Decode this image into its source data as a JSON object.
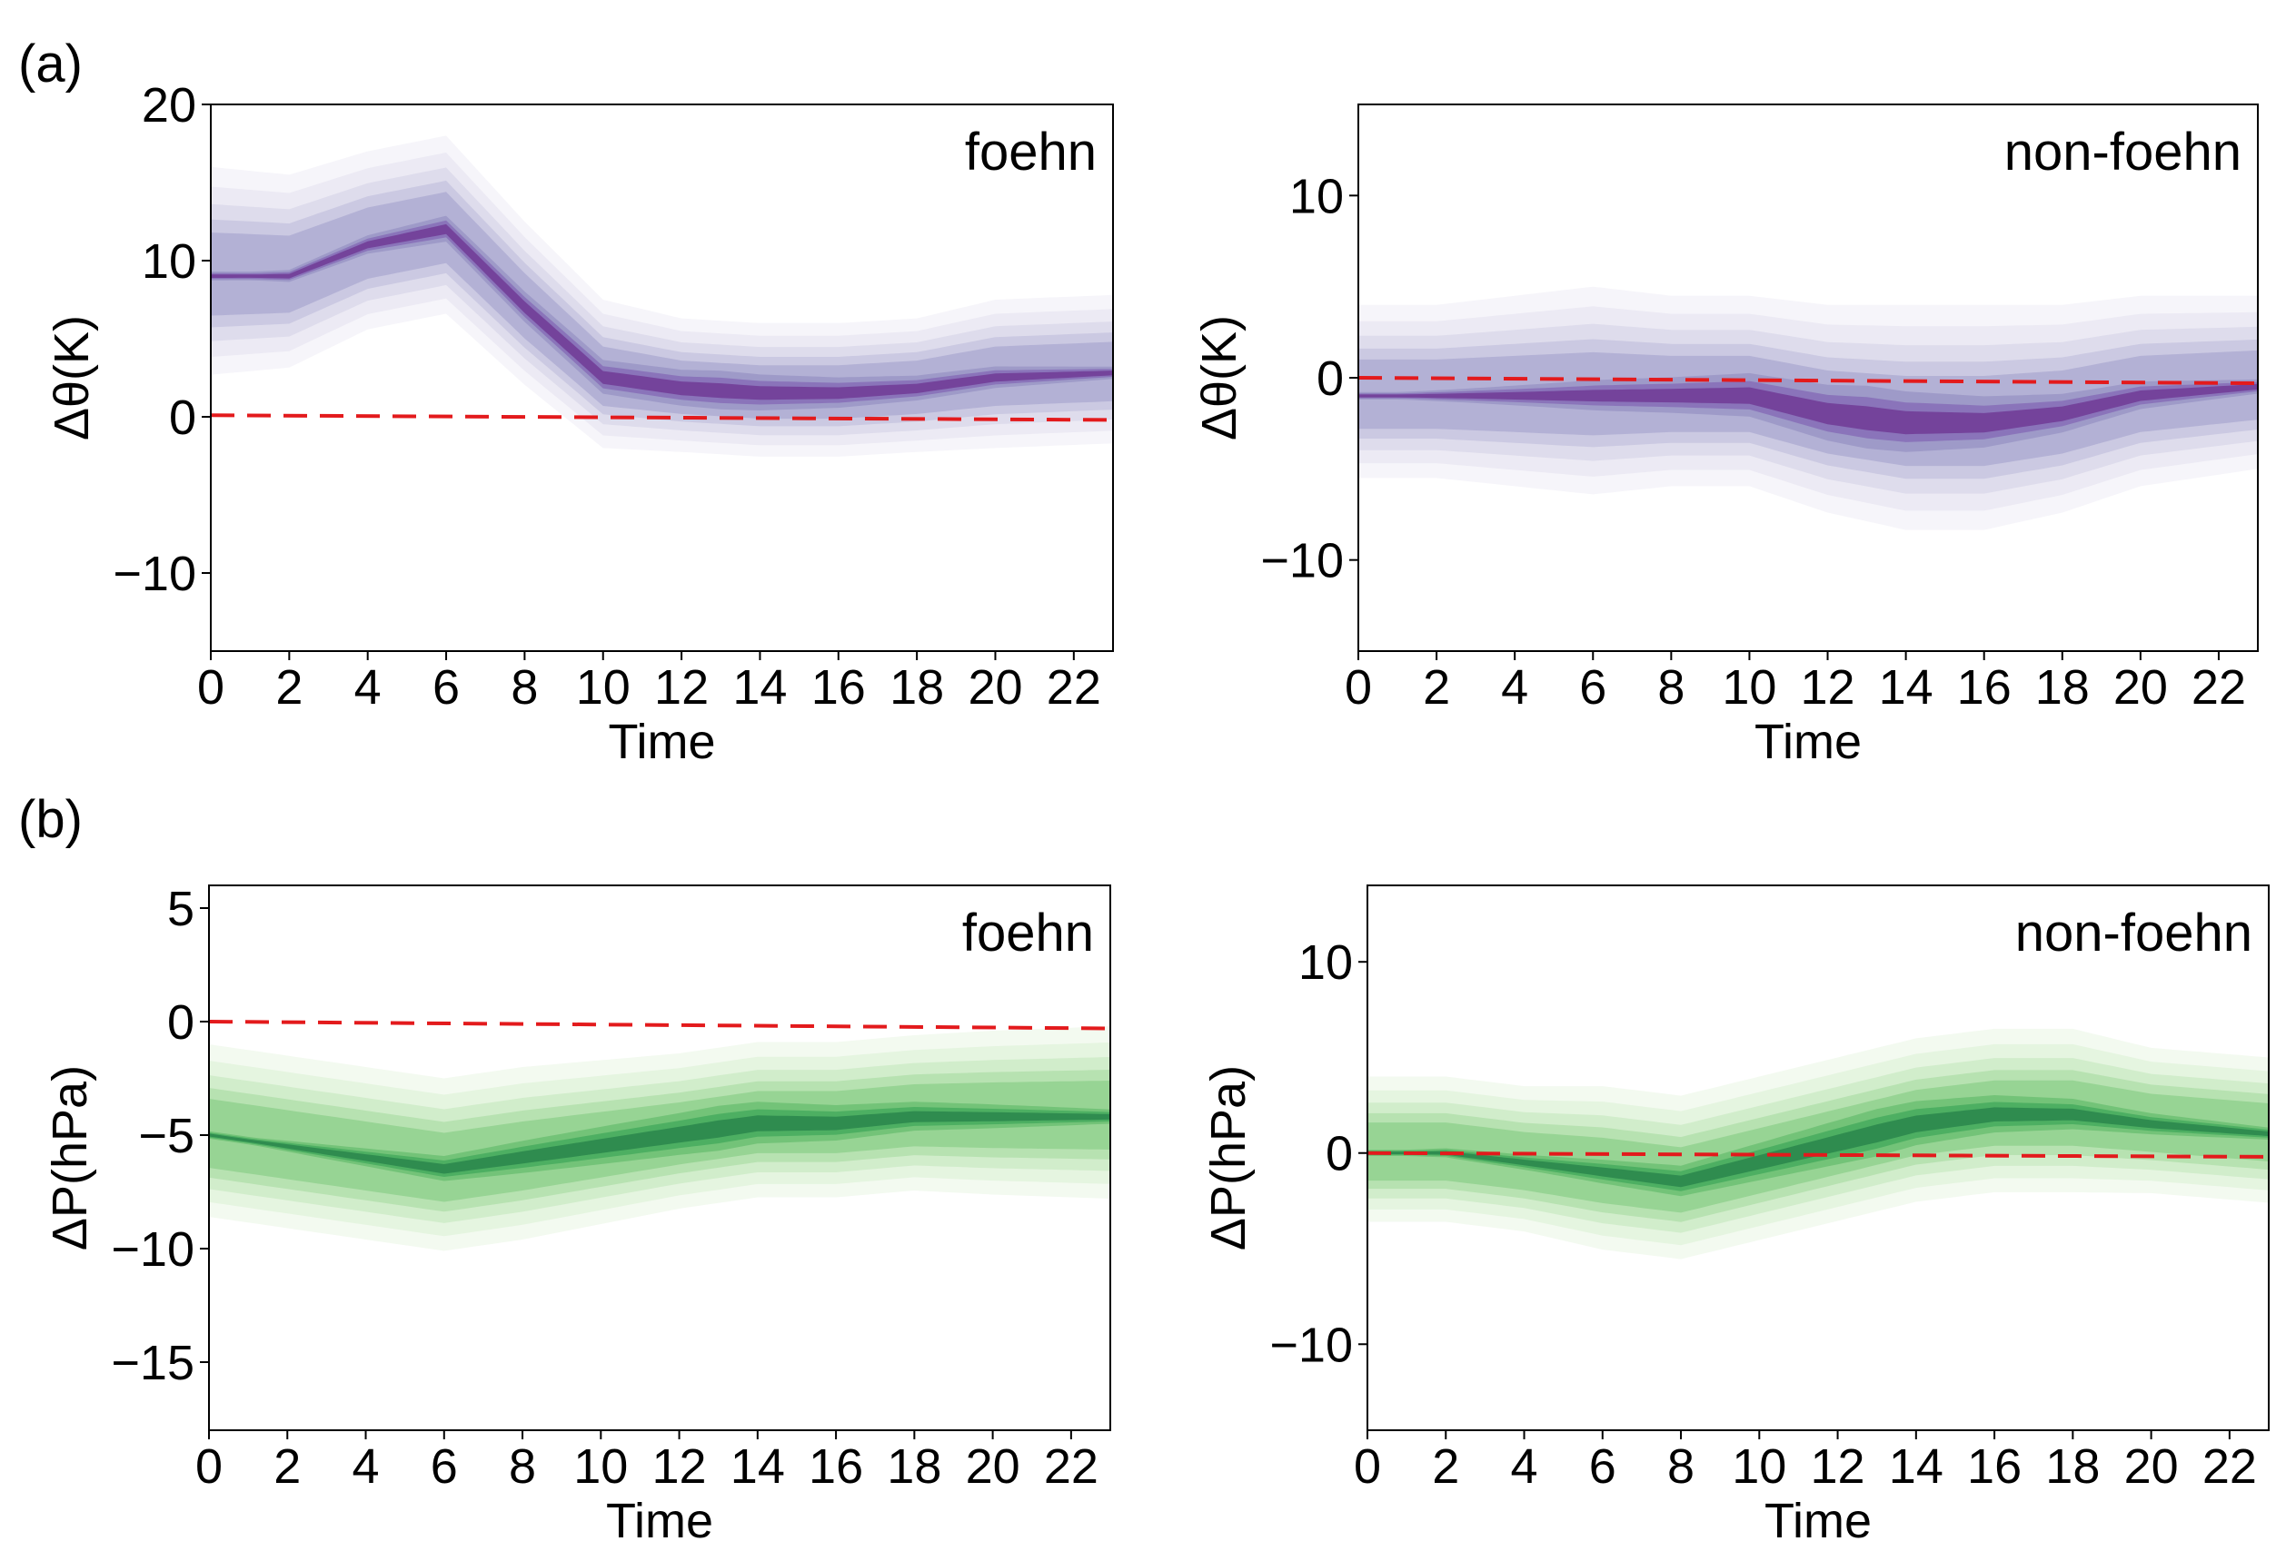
{
  "panel_labels": {
    "a": "(a)",
    "b": "(b)"
  },
  "chart_data": [
    {
      "id": "a-foehn",
      "type": "kde-density",
      "title": "foehn",
      "xlabel": "Time",
      "ylabel": "Δθ(K)",
      "xlim": [
        0,
        23
      ],
      "ylim": [
        -15,
        20
      ],
      "xticks": [
        "0",
        "2",
        "4",
        "6",
        "8",
        "10",
        "12",
        "14",
        "16",
        "18",
        "20",
        "22"
      ],
      "yticks": [
        {
          "v": 20,
          "label": "20"
        },
        {
          "v": 10,
          "label": "10"
        },
        {
          "v": 0,
          "label": "0"
        },
        {
          "v": -10,
          "label": "−10"
        }
      ],
      "colormap": "purples",
      "colors": [
        "#f6f5fa",
        "#eceaf4",
        "#dedcec",
        "#cbc9e2",
        "#b3b1d5",
        "#9e9ac8",
        "#8a74ba",
        "#74439b"
      ],
      "reference_line": {
        "color": "#e31a1c",
        "y_start": 0.1,
        "y_end": -0.2
      },
      "ridge": {
        "x": [
          0,
          2,
          4,
          6,
          8,
          10,
          12,
          14,
          16,
          18,
          20,
          23
        ],
        "y": [
          9,
          9,
          11,
          12,
          7,
          2.5,
          1.8,
          1.5,
          1.5,
          1.8,
          2.5,
          2.8
        ]
      },
      "spread": [
        7,
        6.5,
        6,
        6,
        5.5,
        5,
        4.5,
        4.5,
        4.5,
        4.5,
        5,
        5
      ]
    },
    {
      "id": "a-nonfoehn",
      "type": "kde-density",
      "title": "non-foehn",
      "xlabel": "Time",
      "ylabel": "Δθ(K)",
      "xlim": [
        0,
        23
      ],
      "ylim": [
        -15,
        15
      ],
      "xticks": [
        "0",
        "2",
        "4",
        "6",
        "8",
        "10",
        "12",
        "14",
        "16",
        "18",
        "20",
        "22"
      ],
      "yticks": [
        {
          "v": 10,
          "label": "10"
        },
        {
          "v": 0,
          "label": "0"
        },
        {
          "v": -10,
          "label": "−10"
        }
      ],
      "colormap": "purples",
      "colors": [
        "#f6f5fa",
        "#eceaf4",
        "#dedcec",
        "#cbc9e2",
        "#b3b1d5",
        "#9e9ac8",
        "#8a74ba",
        "#74439b"
      ],
      "reference_line": {
        "color": "#e31a1c",
        "y_start": 0,
        "y_end": -0.3
      },
      "ridge": {
        "x": [
          0,
          2,
          4,
          6,
          8,
          10,
          12,
          14,
          16,
          18,
          20,
          23
        ],
        "y": [
          -1,
          -1,
          -1,
          -1,
          -1,
          -1,
          -2,
          -2.5,
          -2.5,
          -2,
          -1,
          -0.5
        ]
      },
      "spread": [
        5,
        5,
        5.5,
        6,
        5.5,
        5.5,
        6,
        6.5,
        6.5,
        6,
        5.5,
        5
      ]
    },
    {
      "id": "b-foehn",
      "type": "kde-density",
      "title": "foehn",
      "xlabel": "Time",
      "ylabel": "ΔP(hPa)",
      "xlim": [
        0,
        23
      ],
      "ylim": [
        -18,
        6
      ],
      "xticks": [
        "0",
        "2",
        "4",
        "6",
        "8",
        "10",
        "12",
        "14",
        "16",
        "18",
        "20",
        "22"
      ],
      "yticks": [
        {
          "v": 5,
          "label": "5"
        },
        {
          "v": 0,
          "label": "0"
        },
        {
          "v": -5,
          "label": "−5"
        },
        {
          "v": -10,
          "label": "−10"
        },
        {
          "v": -15,
          "label": "−15"
        }
      ],
      "colormap": "greens",
      "colors": [
        "#f3faf0",
        "#e5f5e0",
        "#d1edcb",
        "#b7e2b1",
        "#97d494",
        "#73c378",
        "#4daf62",
        "#2f8c4f"
      ],
      "reference_line": {
        "color": "#e31a1c",
        "y_start": 0,
        "y_end": -0.3
      },
      "ridge": {
        "x": [
          0,
          2,
          4,
          6,
          8,
          10,
          12,
          14,
          16,
          18,
          20,
          23
        ],
        "y": [
          -5,
          -5.5,
          -6,
          -6.5,
          -6,
          -5.5,
          -5,
          -4.5,
          -4.5,
          -4.2,
          -4.2,
          -4.2
        ]
      },
      "spread": [
        4,
        4,
        4,
        4,
        4,
        3.8,
        3.6,
        3.6,
        3.6,
        3.6,
        3.8,
        4
      ]
    },
    {
      "id": "b-nonfoehn",
      "type": "kde-density",
      "title": "non-foehn",
      "xlabel": "Time",
      "ylabel": "ΔP(hPa)",
      "xlim": [
        0,
        23
      ],
      "ylim": [
        -14.5,
        14
      ],
      "xticks": [
        "0",
        "2",
        "4",
        "6",
        "8",
        "10",
        "12",
        "14",
        "16",
        "18",
        "20",
        "22"
      ],
      "yticks": [
        {
          "v": 10,
          "label": "10"
        },
        {
          "v": 0,
          "label": "0"
        },
        {
          "v": -10,
          "label": "−10"
        }
      ],
      "colormap": "greens",
      "colors": [
        "#f3faf0",
        "#e5f5e0",
        "#d1edcb",
        "#b7e2b1",
        "#97d494",
        "#73c378",
        "#4daf62",
        "#2f8c4f"
      ],
      "reference_line": {
        "color": "#e31a1c",
        "y_start": 0,
        "y_end": -0.2
      },
      "ridge": {
        "x": [
          0,
          2,
          4,
          6,
          8,
          10,
          12,
          14,
          16,
          18,
          20,
          23
        ],
        "y": [
          0,
          0,
          -0.5,
          -1,
          -1.5,
          -0.5,
          0.5,
          1.5,
          2,
          2,
          1.5,
          1
        ]
      },
      "spread": [
        4,
        4,
        4,
        4.5,
        4.5,
        4.5,
        4.5,
        4.5,
        4.5,
        4.5,
        4,
        4
      ]
    }
  ]
}
